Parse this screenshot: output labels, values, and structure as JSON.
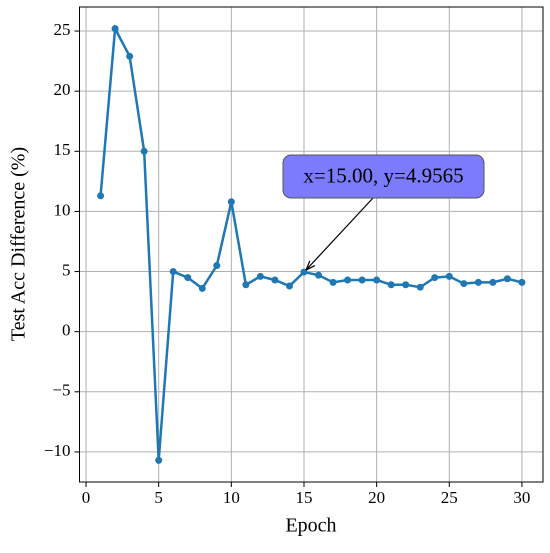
{
  "chart_data": {
    "type": "line",
    "x_label": "Epoch",
    "y_label": "Test Acc Difference (%)",
    "x": [
      1,
      2,
      3,
      4,
      5,
      6,
      7,
      8,
      9,
      10,
      11,
      12,
      13,
      14,
      15,
      16,
      17,
      18,
      19,
      20,
      21,
      22,
      23,
      24,
      25,
      26,
      27,
      28,
      29,
      30
    ],
    "series": [
      {
        "color": "#1f77b4",
        "values": [
          11.3,
          25.2,
          22.9,
          15.0,
          -10.7,
          5.0,
          4.5,
          3.6,
          5.5,
          10.8,
          3.9,
          4.6,
          4.3,
          3.8,
          4.9565,
          4.7,
          4.1,
          4.3,
          4.3,
          4.3,
          3.9,
          3.9,
          3.7,
          4.5,
          4.6,
          4.0,
          4.1,
          4.1,
          4.4,
          4.1
        ]
      }
    ],
    "xlim": [
      -0.45,
      31.45
    ],
    "ylim": [
      -12.5,
      27.0
    ],
    "xticks": [
      0,
      5,
      10,
      15,
      20,
      25,
      30
    ],
    "yticks": [
      {
        "value": -10,
        "label": "−10"
      },
      {
        "value": -5,
        "label": "−5"
      },
      0,
      5,
      10,
      15,
      20,
      25
    ],
    "grid": true,
    "annotations": [
      {
        "text": "x=15.00, y=4.9565",
        "x": 15,
        "y": 4.9565
      }
    ]
  }
}
